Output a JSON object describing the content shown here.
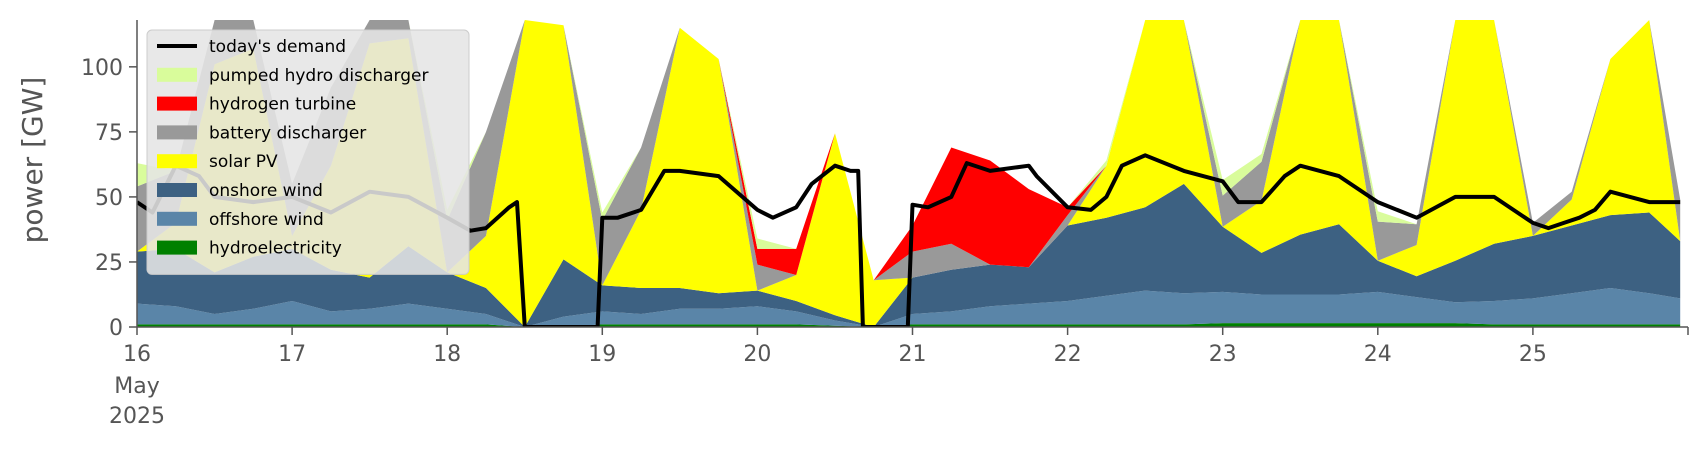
{
  "chart_data": {
    "type": "area",
    "title": "",
    "xlabel": "",
    "ylabel": "power [GW]",
    "ylim": [
      0,
      118
    ],
    "yticks": [
      0,
      25,
      50,
      75,
      100
    ],
    "xlim": [
      0,
      10
    ],
    "xticks": [
      {
        "x": 0,
        "label": "16",
        "sub1": "May",
        "sub2": "2025"
      },
      {
        "x": 1,
        "label": "17"
      },
      {
        "x": 2,
        "label": "18"
      },
      {
        "x": 3,
        "label": "19"
      },
      {
        "x": 4,
        "label": "20"
      },
      {
        "x": 5,
        "label": "21"
      },
      {
        "x": 6,
        "label": "22"
      },
      {
        "x": 7,
        "label": "23"
      },
      {
        "x": 8,
        "label": "24"
      },
      {
        "x": 9,
        "label": "25"
      }
    ],
    "grid": false,
    "legend_position": "top-left",
    "x": [
      0,
      0.25,
      0.5,
      0.75,
      1,
      1.25,
      1.5,
      1.75,
      2,
      2.25,
      2.5,
      2.75,
      3,
      3.25,
      3.5,
      3.75,
      4,
      4.25,
      4.5,
      4.75,
      5,
      5.25,
      5.5,
      5.75,
      6,
      6.25,
      6.5,
      6.75,
      7,
      7.25,
      7.5,
      7.75,
      8,
      8.25,
      8.5,
      8.75,
      9,
      9.25,
      9.5,
      9.75,
      9.95
    ],
    "series": [
      {
        "name": "hydroelectricity",
        "color": "#008000",
        "values": [
          1,
          1,
          1,
          1,
          1,
          1,
          1,
          1,
          1,
          1,
          0,
          0,
          1,
          1,
          1,
          1,
          1,
          1,
          0.5,
          0,
          1,
          1,
          1,
          1,
          1,
          1,
          1,
          1,
          1.5,
          1.5,
          1.5,
          1.5,
          1.5,
          1.5,
          1.5,
          1,
          1,
          1,
          1,
          1,
          1
        ]
      },
      {
        "name": "offshore wind",
        "color": "#5a85a8",
        "values": [
          8,
          7,
          4,
          6,
          9,
          5,
          6,
          8,
          6,
          4,
          0,
          4,
          5,
          4,
          6,
          6,
          7,
          5,
          2,
          0,
          4,
          5,
          7,
          8,
          9,
          11,
          13,
          12,
          12,
          11,
          11,
          11,
          12,
          10,
          8,
          9,
          10,
          12,
          14,
          12,
          10
        ]
      },
      {
        "name": "onshore wind",
        "color": "#3d6182",
        "values": [
          20,
          22,
          16,
          20,
          20,
          16,
          12,
          22,
          14,
          10,
          0,
          22,
          10,
          10,
          8,
          6,
          6,
          4,
          2,
          0,
          14,
          16,
          16,
          14,
          29,
          30,
          32,
          42,
          25,
          16,
          23,
          27,
          12,
          8,
          16,
          22,
          24,
          26,
          28,
          31,
          22
        ]
      },
      {
        "name": "solar PV",
        "color": "#ffff00",
        "values": [
          0,
          10,
          80,
          80,
          5,
          40,
          90,
          80,
          0,
          20,
          120,
          90,
          0,
          30,
          100,
          90,
          0,
          10,
          70,
          18,
          0,
          0,
          0,
          0,
          0,
          20,
          100,
          100,
          0,
          20,
          120,
          120,
          0,
          12,
          110,
          120,
          0,
          10,
          60,
          120,
          0
        ]
      },
      {
        "name": "battery discharger",
        "color": "#999999",
        "values": [
          25,
          20,
          20,
          15,
          20,
          30,
          40,
          40,
          20,
          40,
          0,
          0,
          25,
          24,
          0,
          0,
          10,
          0,
          0,
          0,
          10,
          10,
          0,
          0,
          4,
          0,
          0,
          0,
          12,
          15,
          0,
          0,
          15,
          8,
          0,
          0,
          5,
          3,
          0,
          0,
          16
        ]
      },
      {
        "name": "hydrogen turbine",
        "color": "#ff0000",
        "values": [
          0,
          0,
          0,
          0,
          0,
          0,
          0,
          0,
          0,
          0,
          0,
          0,
          0,
          0,
          0,
          0,
          6,
          10,
          0,
          0,
          10,
          37,
          40,
          30,
          3,
          0,
          0,
          0,
          0,
          0,
          0,
          0,
          0,
          0,
          0,
          0,
          0,
          0,
          0,
          0,
          0
        ]
      },
      {
        "name": "pumped hydro discharger",
        "color": "#d9fc9b",
        "values": [
          9,
          0,
          0,
          0,
          0,
          0,
          0,
          0,
          4,
          0,
          0,
          0,
          3,
          0,
          0,
          0,
          4,
          0,
          0,
          0,
          0,
          0,
          0,
          0,
          0,
          2,
          0,
          0,
          6,
          3,
          0,
          0,
          4,
          0,
          0,
          0,
          0,
          0,
          0,
          0,
          0
        ]
      }
    ],
    "demand": {
      "name": "today's demand",
      "color": "#000000",
      "x": [
        0,
        0.1,
        0.25,
        0.4,
        0.5,
        0.75,
        1,
        1.25,
        1.5,
        1.75,
        2,
        2.15,
        2.25,
        2.4,
        2.45,
        2.5,
        2.97,
        3,
        3.1,
        3.25,
        3.4,
        3.5,
        3.75,
        4,
        4.1,
        4.25,
        4.35,
        4.5,
        4.6,
        4.65,
        4.68,
        4.97,
        5,
        5.1,
        5.25,
        5.35,
        5.5,
        5.75,
        5.8,
        6,
        6.15,
        6.25,
        6.35,
        6.5,
        6.75,
        7,
        7.1,
        7.25,
        7.4,
        7.5,
        7.75,
        8,
        8.25,
        8.5,
        8.75,
        9,
        9.1,
        9.2,
        9.3,
        9.4,
        9.5,
        9.75,
        9.95
      ],
      "values": [
        48,
        44,
        62,
        58,
        50,
        48,
        50,
        44,
        52,
        50,
        42,
        37,
        38,
        46,
        48,
        0,
        0,
        42,
        42,
        45,
        60,
        60,
        58,
        45,
        42,
        46,
        55,
        62,
        60,
        60,
        0,
        0,
        47,
        46,
        50,
        63,
        60,
        62,
        58,
        46,
        45,
        50,
        62,
        66,
        60,
        56,
        48,
        48,
        58,
        62,
        58,
        48,
        42,
        50,
        50,
        40,
        38,
        40,
        42,
        45,
        52,
        48,
        48
      ]
    }
  }
}
